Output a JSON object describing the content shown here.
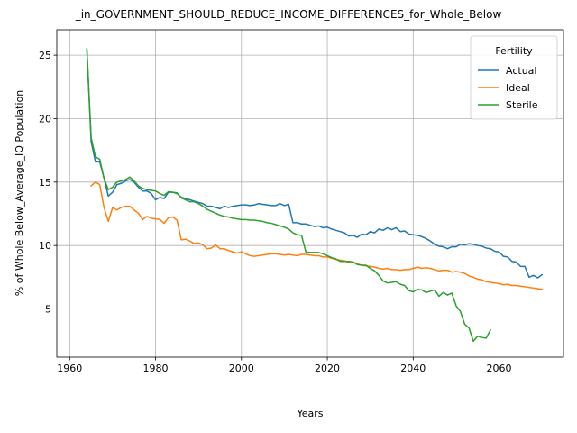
{
  "chart_data": {
    "type": "line",
    "title": "_in_GOVERNMENT_SHOULD_REDUCE_INCOME_DIFFERENCES_for_Whole_Below",
    "xlabel": "Years",
    "ylabel": "% of Whole Below_Average_IQ Population",
    "xlim": [
      1957,
      2075
    ],
    "ylim": [
      1.2,
      27
    ],
    "xticks": [
      1960,
      1980,
      2000,
      2020,
      2040,
      2060
    ],
    "yticks": [
      5,
      10,
      15,
      20,
      25
    ],
    "grid": true,
    "legend": {
      "title": "Fertility",
      "placement": "upper right"
    },
    "series": [
      {
        "name": "Actual",
        "color": "#1f77b4",
        "points": [
          [
            1964,
            25.5
          ],
          [
            1965,
            18.2
          ],
          [
            1966,
            16.6
          ],
          [
            1967,
            16.6
          ],
          [
            1968,
            15.3
          ],
          [
            1969,
            13.9
          ],
          [
            1970,
            14.2
          ],
          [
            1971,
            14.8
          ],
          [
            1972,
            14.9
          ],
          [
            1973,
            15.1
          ],
          [
            1974,
            15.2
          ],
          [
            1975,
            15.0
          ],
          [
            1976,
            14.6
          ],
          [
            1977,
            14.3
          ],
          [
            1978,
            14.3
          ],
          [
            1979,
            14.1
          ],
          [
            1980,
            13.6
          ],
          [
            1981,
            13.8
          ],
          [
            1982,
            13.7
          ],
          [
            1983,
            14.2
          ],
          [
            1984,
            14.2
          ],
          [
            1985,
            14.1
          ],
          [
            1986,
            13.8
          ],
          [
            1987,
            13.7
          ],
          [
            1988,
            13.6
          ],
          [
            1989,
            13.5
          ],
          [
            1990,
            13.4
          ],
          [
            1991,
            13.3
          ],
          [
            1992,
            13.1
          ],
          [
            1993,
            13.1
          ],
          [
            1994,
            13.0
          ],
          [
            1995,
            12.9
          ],
          [
            1996,
            13.1
          ],
          [
            1997,
            13.0
          ],
          [
            1998,
            13.1
          ],
          [
            1999,
            13.15
          ],
          [
            2000,
            13.2
          ],
          [
            2001,
            13.2
          ],
          [
            2002,
            13.15
          ],
          [
            2003,
            13.2
          ],
          [
            2004,
            13.3
          ],
          [
            2005,
            13.25
          ],
          [
            2006,
            13.2
          ],
          [
            2007,
            13.15
          ],
          [
            2008,
            13.15
          ],
          [
            2009,
            13.3
          ],
          [
            2010,
            13.15
          ],
          [
            2011,
            13.25
          ],
          [
            2012,
            11.8
          ],
          [
            2013,
            11.8
          ],
          [
            2014,
            11.7
          ],
          [
            2015,
            11.7
          ],
          [
            2016,
            11.6
          ],
          [
            2017,
            11.5
          ],
          [
            2018,
            11.55
          ],
          [
            2019,
            11.4
          ],
          [
            2020,
            11.45
          ],
          [
            2021,
            11.3
          ],
          [
            2022,
            11.2
          ],
          [
            2023,
            11.1
          ],
          [
            2024,
            11.0
          ],
          [
            2025,
            10.75
          ],
          [
            2026,
            10.8
          ],
          [
            2027,
            10.65
          ],
          [
            2028,
            10.9
          ],
          [
            2029,
            10.85
          ],
          [
            2030,
            11.1
          ],
          [
            2031,
            11.0
          ],
          [
            2032,
            11.3
          ],
          [
            2033,
            11.2
          ],
          [
            2034,
            11.4
          ],
          [
            2035,
            11.25
          ],
          [
            2036,
            11.4
          ],
          [
            2037,
            11.1
          ],
          [
            2038,
            11.15
          ],
          [
            2039,
            10.9
          ],
          [
            2040,
            10.85
          ],
          [
            2041,
            10.8
          ],
          [
            2042,
            10.7
          ],
          [
            2043,
            10.55
          ],
          [
            2044,
            10.35
          ],
          [
            2045,
            10.1
          ],
          [
            2046,
            9.95
          ],
          [
            2047,
            9.9
          ],
          [
            2048,
            9.75
          ],
          [
            2049,
            9.9
          ],
          [
            2050,
            9.9
          ],
          [
            2051,
            10.1
          ],
          [
            2052,
            10.05
          ],
          [
            2053,
            10.15
          ],
          [
            2054,
            10.1
          ],
          [
            2055,
            10.0
          ],
          [
            2056,
            9.95
          ],
          [
            2057,
            9.8
          ],
          [
            2058,
            9.75
          ],
          [
            2059,
            9.55
          ],
          [
            2060,
            9.5
          ],
          [
            2061,
            9.15
          ],
          [
            2062,
            9.1
          ],
          [
            2063,
            8.75
          ],
          [
            2064,
            8.7
          ],
          [
            2065,
            8.35
          ],
          [
            2066,
            8.35
          ],
          [
            2067,
            7.5
          ],
          [
            2068,
            7.65
          ],
          [
            2069,
            7.45
          ],
          [
            2070,
            7.7
          ]
        ]
      },
      {
        "name": "Ideal",
        "color": "#ff7f0e",
        "points": [
          [
            1965,
            14.7
          ],
          [
            1966,
            15.0
          ],
          [
            1967,
            14.8
          ],
          [
            1968,
            13.0
          ],
          [
            1969,
            11.9
          ],
          [
            1970,
            13.0
          ],
          [
            1971,
            12.8
          ],
          [
            1972,
            13.0
          ],
          [
            1973,
            13.1
          ],
          [
            1974,
            13.1
          ],
          [
            1975,
            12.8
          ],
          [
            1976,
            12.55
          ],
          [
            1977,
            12.05
          ],
          [
            1978,
            12.3
          ],
          [
            1979,
            12.15
          ],
          [
            1980,
            12.1
          ],
          [
            1981,
            12.05
          ],
          [
            1982,
            11.75
          ],
          [
            1983,
            12.2
          ],
          [
            1984,
            12.25
          ],
          [
            1985,
            12.0
          ],
          [
            1986,
            10.45
          ],
          [
            1987,
            10.5
          ],
          [
            1988,
            10.35
          ],
          [
            1989,
            10.15
          ],
          [
            1990,
            10.2
          ],
          [
            1991,
            10.05
          ],
          [
            1992,
            9.75
          ],
          [
            1993,
            9.8
          ],
          [
            1994,
            10.05
          ],
          [
            1995,
            9.75
          ],
          [
            1996,
            9.75
          ],
          [
            1997,
            9.6
          ],
          [
            1998,
            9.5
          ],
          [
            1999,
            9.4
          ],
          [
            2000,
            9.5
          ],
          [
            2001,
            9.35
          ],
          [
            2002,
            9.2
          ],
          [
            2003,
            9.15
          ],
          [
            2004,
            9.2
          ],
          [
            2005,
            9.25
          ],
          [
            2006,
            9.3
          ],
          [
            2007,
            9.35
          ],
          [
            2008,
            9.35
          ],
          [
            2009,
            9.3
          ],
          [
            2010,
            9.25
          ],
          [
            2011,
            9.3
          ],
          [
            2012,
            9.25
          ],
          [
            2013,
            9.2
          ],
          [
            2014,
            9.3
          ],
          [
            2015,
            9.3
          ],
          [
            2016,
            9.25
          ],
          [
            2017,
            9.2
          ],
          [
            2018,
            9.2
          ],
          [
            2019,
            9.1
          ],
          [
            2020,
            9.1
          ],
          [
            2021,
            9.0
          ],
          [
            2022,
            8.9
          ],
          [
            2023,
            8.85
          ],
          [
            2024,
            8.8
          ],
          [
            2025,
            8.65
          ],
          [
            2026,
            8.7
          ],
          [
            2027,
            8.55
          ],
          [
            2028,
            8.45
          ],
          [
            2029,
            8.4
          ],
          [
            2030,
            8.35
          ],
          [
            2031,
            8.3
          ],
          [
            2032,
            8.2
          ],
          [
            2033,
            8.15
          ],
          [
            2034,
            8.2
          ],
          [
            2035,
            8.1
          ],
          [
            2036,
            8.1
          ],
          [
            2037,
            8.05
          ],
          [
            2038,
            8.1
          ],
          [
            2039,
            8.1
          ],
          [
            2040,
            8.2
          ],
          [
            2041,
            8.3
          ],
          [
            2042,
            8.2
          ],
          [
            2043,
            8.25
          ],
          [
            2044,
            8.2
          ],
          [
            2045,
            8.1
          ],
          [
            2046,
            8.0
          ],
          [
            2047,
            8.05
          ],
          [
            2048,
            8.05
          ],
          [
            2049,
            7.9
          ],
          [
            2050,
            7.95
          ],
          [
            2051,
            7.9
          ],
          [
            2052,
            7.8
          ],
          [
            2053,
            7.6
          ],
          [
            2054,
            7.5
          ],
          [
            2055,
            7.35
          ],
          [
            2056,
            7.3
          ],
          [
            2057,
            7.15
          ],
          [
            2058,
            7.1
          ],
          [
            2059,
            7.05
          ],
          [
            2060,
            7.0
          ],
          [
            2061,
            6.9
          ],
          [
            2062,
            6.95
          ],
          [
            2063,
            6.85
          ],
          [
            2064,
            6.85
          ],
          [
            2065,
            6.8
          ],
          [
            2066,
            6.75
          ],
          [
            2067,
            6.7
          ],
          [
            2068,
            6.65
          ],
          [
            2069,
            6.6
          ],
          [
            2070,
            6.55
          ]
        ]
      },
      {
        "name": "Sterile",
        "color": "#2ca02c",
        "points": [
          [
            1964,
            25.5
          ],
          [
            1965,
            18.5
          ],
          [
            1966,
            17.0
          ],
          [
            1967,
            16.8
          ],
          [
            1968,
            15.3
          ],
          [
            1969,
            14.4
          ],
          [
            1970,
            14.6
          ],
          [
            1971,
            15.0
          ],
          [
            1972,
            15.1
          ],
          [
            1973,
            15.2
          ],
          [
            1974,
            15.4
          ],
          [
            1975,
            15.1
          ],
          [
            1976,
            14.7
          ],
          [
            1977,
            14.5
          ],
          [
            1978,
            14.4
          ],
          [
            1979,
            14.35
          ],
          [
            1980,
            14.3
          ],
          [
            1981,
            14.1
          ],
          [
            1982,
            13.95
          ],
          [
            1983,
            14.25
          ],
          [
            1984,
            14.2
          ],
          [
            1985,
            14.15
          ],
          [
            1986,
            13.75
          ],
          [
            1987,
            13.6
          ],
          [
            1988,
            13.45
          ],
          [
            1989,
            13.45
          ],
          [
            1990,
            13.3
          ],
          [
            1991,
            13.1
          ],
          [
            1992,
            12.85
          ],
          [
            1993,
            12.7
          ],
          [
            1994,
            12.55
          ],
          [
            1995,
            12.4
          ],
          [
            1996,
            12.3
          ],
          [
            1997,
            12.25
          ],
          [
            1998,
            12.15
          ],
          [
            1999,
            12.1
          ],
          [
            2000,
            12.05
          ],
          [
            2001,
            12.05
          ],
          [
            2002,
            12.0
          ],
          [
            2003,
            12.0
          ],
          [
            2004,
            11.95
          ],
          [
            2005,
            11.9
          ],
          [
            2006,
            11.8
          ],
          [
            2007,
            11.75
          ],
          [
            2008,
            11.65
          ],
          [
            2009,
            11.55
          ],
          [
            2010,
            11.45
          ],
          [
            2011,
            11.3
          ],
          [
            2012,
            11.0
          ],
          [
            2013,
            10.85
          ],
          [
            2014,
            10.8
          ],
          [
            2015,
            9.5
          ],
          [
            2016,
            9.45
          ],
          [
            2017,
            9.45
          ],
          [
            2018,
            9.45
          ],
          [
            2019,
            9.35
          ],
          [
            2020,
            9.2
          ],
          [
            2021,
            9.05
          ],
          [
            2022,
            8.95
          ],
          [
            2023,
            8.75
          ],
          [
            2024,
            8.75
          ],
          [
            2025,
            8.75
          ],
          [
            2026,
            8.7
          ],
          [
            2027,
            8.5
          ],
          [
            2028,
            8.45
          ],
          [
            2029,
            8.45
          ],
          [
            2030,
            8.2
          ],
          [
            2031,
            8.0
          ],
          [
            2032,
            7.65
          ],
          [
            2033,
            7.2
          ],
          [
            2034,
            7.05
          ],
          [
            2035,
            7.1
          ],
          [
            2036,
            7.15
          ],
          [
            2037,
            6.95
          ],
          [
            2038,
            6.85
          ],
          [
            2039,
            6.45
          ],
          [
            2040,
            6.35
          ],
          [
            2041,
            6.55
          ],
          [
            2042,
            6.5
          ],
          [
            2043,
            6.3
          ],
          [
            2044,
            6.4
          ],
          [
            2045,
            6.5
          ],
          [
            2046,
            6.0
          ],
          [
            2047,
            6.3
          ],
          [
            2048,
            6.1
          ],
          [
            2049,
            6.25
          ],
          [
            2050,
            5.25
          ],
          [
            2051,
            4.8
          ],
          [
            2052,
            3.8
          ],
          [
            2053,
            3.5
          ],
          [
            2054,
            2.45
          ],
          [
            2055,
            2.85
          ],
          [
            2056,
            2.75
          ],
          [
            2057,
            2.7
          ],
          [
            2058,
            3.35
          ]
        ]
      }
    ]
  }
}
